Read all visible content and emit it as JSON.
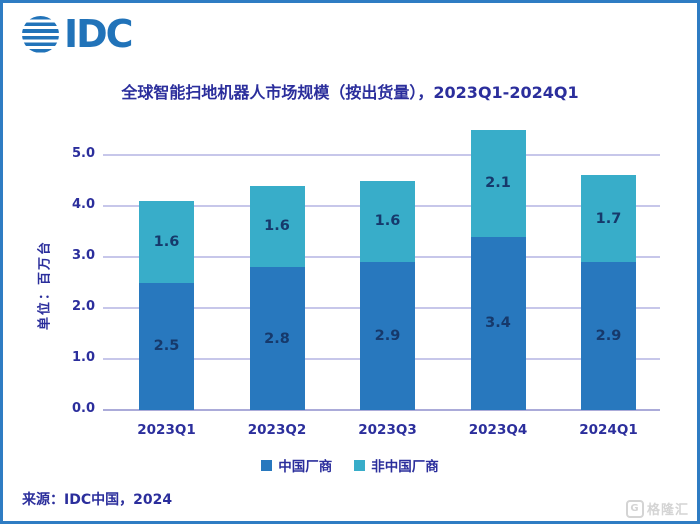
{
  "page": {
    "logo_text": "IDC",
    "source": "来源：IDC中国，2024",
    "watermark_icon": "G",
    "watermark_text": "格隆汇"
  },
  "colors": {
    "frame": "#2E7CC3",
    "logo": "#2173B9",
    "title_text": "#2B2E9C",
    "axis_text": "#2B2E9C",
    "grid": "#C7C7EA",
    "grid_axis": "#ABABD9",
    "bar_label": "#16396B",
    "watermark": "#D4D4D4"
  },
  "chart_data": {
    "type": "bar",
    "stacked": true,
    "title": "全球智能扫地机器人市场规模（按出货量），2023Q1-2024Q1",
    "ylabel": "单位：百万台",
    "categories": [
      "2023Q1",
      "2023Q2",
      "2023Q3",
      "2023Q4",
      "2024Q1"
    ],
    "series": [
      {
        "name": "中国厂商",
        "color": "#2878BE",
        "values": [
          2.5,
          2.8,
          2.9,
          3.4,
          2.9
        ]
      },
      {
        "name": "非中国厂商",
        "color": "#38ADC9",
        "values": [
          1.6,
          1.6,
          1.6,
          2.1,
          1.7
        ]
      }
    ],
    "totals": [
      4.1,
      4.4,
      4.5,
      5.5,
      4.6
    ],
    "ylim": [
      0,
      5.5
    ],
    "ytick_step": 1.0,
    "ytick_labels": [
      "0.0",
      "1.0",
      "2.0",
      "3.0",
      "4.0",
      "5.0"
    ],
    "grid": true,
    "legend_position": "bottom"
  }
}
